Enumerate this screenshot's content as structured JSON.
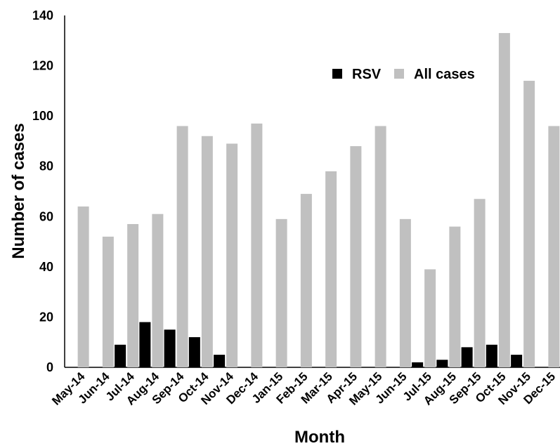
{
  "chart_data": {
    "type": "bar",
    "title": "",
    "xlabel": "Month",
    "ylabel": "Number of cases",
    "ylim": [
      0,
      140
    ],
    "yticks": [
      "0",
      "20",
      "40",
      "60",
      "80",
      "100",
      "120",
      "140"
    ],
    "grid": false,
    "legend_position": "top-right",
    "categories": [
      "May-14",
      "Jun-14",
      "Jul-14",
      "Aug-14",
      "Sep-14",
      "Oct-14",
      "Nov-14",
      "Dec-14",
      "Jan-15",
      "Feb-15",
      "Mar-15",
      "Apr-15",
      "May-15",
      "Jun-15",
      "Jul-15",
      "Aug-15",
      "Sep-15",
      "Oct-15",
      "Nov-15",
      "Dec-15"
    ],
    "series": [
      {
        "name": "RSV",
        "color": "#000000",
        "values": [
          0,
          0,
          9,
          18,
          15,
          12,
          5,
          0,
          0,
          0,
          0,
          0,
          0,
          0,
          2,
          3,
          8,
          9,
          5,
          0
        ]
      },
      {
        "name": "All cases",
        "color": "#c0c0c0",
        "values": [
          64,
          52,
          57,
          61,
          96,
          92,
          89,
          97,
          59,
          69,
          78,
          88,
          96,
          59,
          39,
          56,
          67,
          133,
          114,
          96
        ]
      }
    ]
  }
}
